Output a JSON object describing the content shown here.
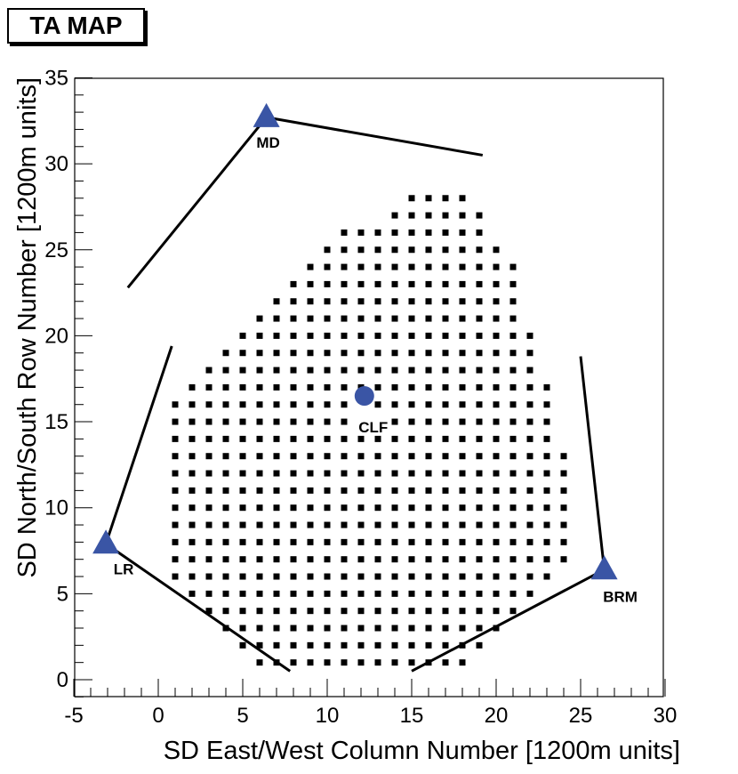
{
  "chart_data": {
    "type": "scatter",
    "title": "TA MAP",
    "xlabel": "SD East/West Column Number [1200m units]",
    "ylabel": "SD North/South Row Number [1200m units]",
    "xlim": [
      -5,
      30
    ],
    "ylim": [
      -1,
      35
    ],
    "xticks": [
      -5,
      0,
      5,
      10,
      15,
      20,
      25,
      30
    ],
    "yticks": [
      0,
      5,
      10,
      15,
      20,
      25,
      30,
      35
    ],
    "grid": false,
    "detector_rows": [
      {
        "y": 1,
        "x_min": 6,
        "x_max": 18
      },
      {
        "y": 2,
        "x_min": 5,
        "x_max": 19
      },
      {
        "y": 3,
        "x_min": 4,
        "x_max": 20
      },
      {
        "y": 4,
        "x_min": 3,
        "x_max": 21
      },
      {
        "y": 5,
        "x_min": 2,
        "x_max": 22
      },
      {
        "y": 6,
        "x_min": 1,
        "x_max": 23
      },
      {
        "y": 7,
        "x_min": 1,
        "x_max": 24
      },
      {
        "y": 8,
        "x_min": 1,
        "x_max": 24
      },
      {
        "y": 9,
        "x_min": 1,
        "x_max": 24
      },
      {
        "y": 10,
        "x_min": 1,
        "x_max": 24
      },
      {
        "y": 11,
        "x_min": 1,
        "x_max": 24
      },
      {
        "y": 12,
        "x_min": 1,
        "x_max": 24
      },
      {
        "y": 13,
        "x_min": 1,
        "x_max": 24
      },
      {
        "y": 14,
        "x_min": 1,
        "x_max": 23
      },
      {
        "y": 15,
        "x_min": 1,
        "x_max": 23
      },
      {
        "y": 16,
        "x_min": 1,
        "x_max": 23
      },
      {
        "y": 17,
        "x_min": 2,
        "x_max": 23
      },
      {
        "y": 18,
        "x_min": 3,
        "x_max": 22
      },
      {
        "y": 19,
        "x_min": 4,
        "x_max": 22
      },
      {
        "y": 20,
        "x_min": 5,
        "x_max": 22
      },
      {
        "y": 21,
        "x_min": 6,
        "x_max": 21
      },
      {
        "y": 22,
        "x_min": 7,
        "x_max": 21
      },
      {
        "y": 23,
        "x_min": 8,
        "x_max": 21
      },
      {
        "y": 24,
        "x_min": 9,
        "x_max": 21
      },
      {
        "y": 25,
        "x_min": 10,
        "x_max": 20
      },
      {
        "y": 26,
        "x_min": 11,
        "x_max": 19
      },
      {
        "y": 27,
        "x_min": 14,
        "x_max": 19
      },
      {
        "y": 28,
        "x_min": 15,
        "x_max": 18
      }
    ],
    "missing_detectors": [
      {
        "x": 12,
        "y": 16
      },
      {
        "x": 12,
        "y": 15
      },
      {
        "x": 13,
        "y": 15
      }
    ],
    "stations": [
      {
        "name": "MD",
        "marker": "triangle",
        "x": 6.4,
        "y": 32.7
      },
      {
        "name": "LR",
        "marker": "triangle",
        "x": -3.1,
        "y": 7.9
      },
      {
        "name": "BRM",
        "marker": "triangle",
        "x": 26.4,
        "y": 6.4
      },
      {
        "name": "CLF",
        "marker": "circle",
        "x": 12.2,
        "y": 16.5
      }
    ],
    "fov_lines": [
      {
        "station": "MD",
        "x1": 6.4,
        "y1": 32.7,
        "x2": 19.2,
        "y2": 30.5
      },
      {
        "station": "MD",
        "x1": 6.4,
        "y1": 32.7,
        "x2": -1.8,
        "y2": 22.8
      },
      {
        "station": "LR",
        "x1": -3.1,
        "y1": 7.9,
        "x2": 0.8,
        "y2": 19.4
      },
      {
        "station": "LR",
        "x1": -3.1,
        "y1": 7.9,
        "x2": 7.8,
        "y2": 0.5
      },
      {
        "station": "BRM",
        "x1": 26.4,
        "y1": 6.4,
        "x2": 25.0,
        "y2": 18.8
      },
      {
        "station": "BRM",
        "x1": 26.4,
        "y1": 6.4,
        "x2": 15.0,
        "y2": 0.5
      }
    ],
    "colors": {
      "station": "#3a55a5",
      "detector": "#000000",
      "line": "#000000"
    }
  }
}
